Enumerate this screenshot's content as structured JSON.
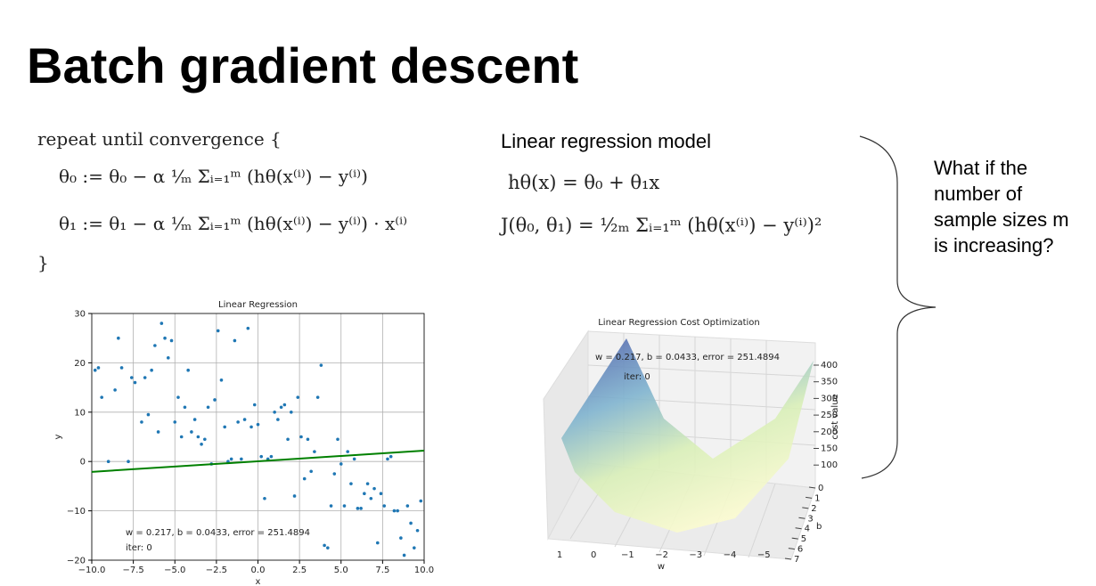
{
  "title": "Batch gradient descent",
  "algorithm": {
    "lines": [
      "repeat until convergence {",
      "θ₀ := θ₀ − α ¹⁄ₘ Σᵢ₌₁ᵐ (hθ(x⁽ⁱ⁾) − y⁽ⁱ⁾)",
      "θ₁ := θ₁ − α ¹⁄ₘ Σᵢ₌₁ᵐ (hθ(x⁽ⁱ⁾) − y⁽ⁱ⁾) · x⁽ⁱ⁾",
      "}"
    ]
  },
  "model": {
    "heading": "Linear regression model",
    "equations": [
      "hθ(x) = θ₀ + θ₁x",
      "J(θ₀, θ₁) = ¹⁄₂ₘ Σᵢ₌₁ᵐ (hθ(x⁽ⁱ⁾) − y⁽ⁱ⁾)²"
    ]
  },
  "question": {
    "lines": [
      "What if the",
      "number of",
      "sample sizes m",
      "is increasing?"
    ]
  },
  "chart_data": {
    "type": "scatter",
    "title": "Linear Regression",
    "xlabel": "x",
    "ylabel": "y",
    "xlim": [
      -10,
      10
    ],
    "ylim": [
      -20,
      30
    ],
    "grid": true,
    "xticks": [
      {
        "value": -10,
        "label": "−10.0"
      },
      {
        "value": -7.5,
        "label": "−7.5"
      },
      {
        "value": -5,
        "label": "−5.0"
      },
      {
        "value": -2.5,
        "label": "−2.5"
      },
      {
        "value": 0,
        "label": "0.0"
      },
      2.5,
      {
        "value": 5,
        "label": "5.0"
      },
      7.5,
      {
        "value": 10,
        "label": "10.0"
      }
    ],
    "yticks": [
      {
        "value": -20,
        "label": "−20"
      },
      {
        "value": -10,
        "label": "−10"
      },
      0,
      10,
      20,
      30
    ],
    "annotations": [
      "w = 0.217, b = 0.0433, error = 251.4894",
      "iter: 0"
    ],
    "series": [
      {
        "color": "#1f77b4",
        "x": [
          -9.8,
          -9.6,
          -9.4,
          -9,
          -8.6,
          -8.4,
          -8.2,
          -7.8,
          -7.6,
          -7.4,
          -7,
          -6.8,
          -6.6,
          -6.4,
          -6.2,
          -6,
          -5.8,
          -5.6,
          -5.4,
          -5.2,
          -5,
          -4.8,
          -4.6,
          -4.4,
          -4.2,
          -4,
          -3.8,
          -3.6,
          -3.4,
          -3.2,
          -3,
          -2.8,
          -2.6,
          -2.4,
          -2.2,
          -2,
          -1.8,
          -1.6,
          -1.4,
          -1.2,
          -1,
          -0.8,
          -0.6,
          -0.4,
          -0.2,
          0,
          0.2,
          0.4,
          0.6,
          0.8,
          1,
          1.2,
          1.4,
          1.6,
          1.8,
          2,
          2.2,
          2.4,
          2.6,
          2.8,
          3,
          3.2,
          3.4,
          3.6,
          3.8,
          4,
          4.2,
          4.4,
          4.6,
          4.8,
          5,
          5.2,
          5.4,
          5.6,
          5.8,
          6,
          6.2,
          6.4,
          6.6,
          6.8,
          7,
          7.2,
          7.4,
          7.6,
          7.8,
          8,
          8.2,
          8.4,
          8.6,
          8.8,
          9,
          9.2,
          9.4,
          9.6,
          9.8
        ],
        "values": [
          18.5,
          19,
          13,
          0,
          14.5,
          25,
          19,
          0,
          17,
          16,
          8,
          17,
          9.5,
          18.5,
          23.5,
          6,
          28,
          25,
          21,
          24.5,
          8,
          13,
          5,
          11,
          18.5,
          6,
          8.5,
          5,
          3.5,
          4.5,
          11,
          -0.5,
          12.5,
          26.5,
          16.5,
          7,
          0,
          0.5,
          24.5,
          8,
          0.5,
          8.5,
          27,
          7,
          11.5,
          7.5,
          1,
          -7.5,
          0.5,
          1,
          10,
          8.5,
          11,
          11.5,
          4.5,
          10,
          -7,
          13,
          5,
          -3.5,
          4.5,
          -2,
          2,
          13,
          19.5,
          -17,
          -17.5,
          -9,
          -2.5,
          4.5,
          -0.5,
          -9,
          2,
          -4.5,
          0.5,
          -9.5,
          -9.5,
          -6.5,
          -4.5,
          -7.5,
          -5.5,
          -16.5,
          -6.5,
          -9,
          0.5,
          1,
          -10,
          -10,
          -15.5,
          -19,
          -9,
          -12.5,
          -17.5,
          -14,
          -8
        ]
      },
      {
        "color": "#008000",
        "mode": "line",
        "x": [
          -10,
          10
        ],
        "values": [
          -2.1,
          2.2
        ]
      }
    ]
  },
  "surface_plot": {
    "title": "Linear Regression Cost Optimization",
    "annotations": [
      "w = 0.217, b = 0.0433, error = 251.4894",
      "iter: 0"
    ],
    "zlabel": "cost value",
    "xlabel": "w",
    "ylabel": "b",
    "zticks": [
      400,
      350,
      300,
      250,
      200,
      150,
      100
    ],
    "yticks": [
      0,
      1,
      2,
      3,
      4,
      5,
      6,
      7
    ],
    "xticks": [
      1,
      0,
      {
        "value": -1,
        "label": "−1"
      },
      {
        "value": -2,
        "label": "−2"
      },
      {
        "value": -3,
        "label": "−3"
      },
      {
        "value": -4,
        "label": "−4"
      },
      {
        "value": -5,
        "label": "−5"
      }
    ]
  }
}
